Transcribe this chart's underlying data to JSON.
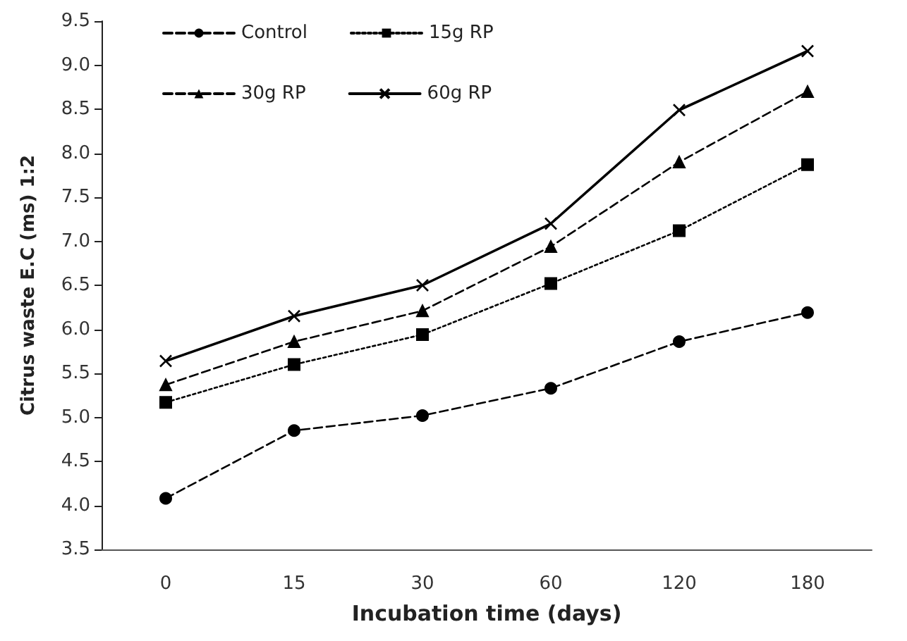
{
  "chart_data": {
    "type": "line",
    "xlabel": "Incubation time (days)",
    "ylabel": "Citrus waste E.C (ms) 1:2",
    "categories": [
      "0",
      "15",
      "30",
      "60",
      "120",
      "180"
    ],
    "ylim": [
      3.5,
      9.5
    ],
    "yticks": [
      {
        "value": 3.5,
        "label": "3.5"
      },
      {
        "value": 4,
        "label": "4.0"
      },
      {
        "value": 4.5,
        "label": "4.5"
      },
      {
        "value": 5,
        "label": "5.0"
      },
      {
        "value": 5.5,
        "label": "5.5"
      },
      {
        "value": 6,
        "label": "6.0"
      },
      {
        "value": 6.5,
        "label": "6.5"
      },
      {
        "value": 7,
        "label": "7.0"
      },
      {
        "value": 7.5,
        "label": "7.5"
      },
      {
        "value": 8,
        "label": "8.0"
      },
      {
        "value": 8.5,
        "label": "8.5"
      },
      {
        "value": 9,
        "label": "9.0"
      },
      {
        "value": 9.5,
        "label": "9.5"
      }
    ],
    "grid": false,
    "legend": "top left",
    "series": [
      {
        "name": "Control",
        "color": "#000000",
        "marker": "circle",
        "line_style": "dashed",
        "values": [
          4.08,
          4.85,
          5.02,
          5.33,
          5.86,
          6.19
        ]
      },
      {
        "name": "15g RP",
        "color": "#000000",
        "marker": "square",
        "line_style": "dotted",
        "values": [
          5.17,
          5.6,
          5.94,
          6.52,
          7.12,
          7.87
        ]
      },
      {
        "name": "30g RP",
        "color": "#000000",
        "marker": "triangle",
        "line_style": "dashed",
        "values": [
          5.37,
          5.86,
          6.21,
          6.94,
          7.9,
          8.7
        ]
      },
      {
        "name": "60g RP",
        "color": "#000000",
        "marker": "cross",
        "line_style": "solid",
        "values": [
          5.64,
          6.15,
          6.5,
          7.2,
          8.49,
          9.16
        ]
      }
    ]
  }
}
